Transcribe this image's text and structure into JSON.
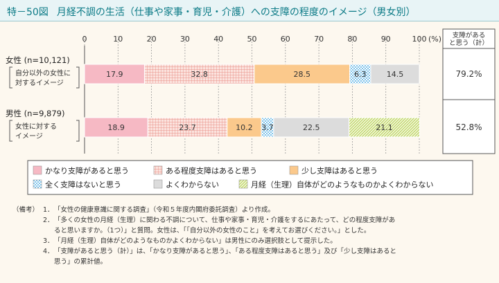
{
  "figure": {
    "number": "特－50図",
    "title": "月経不調の生活（仕事や家事・育児・介護）への支障の程度のイメージ（男女別）"
  },
  "colors": {
    "title": "#0b7a86",
    "cat1": "#f6b9c4",
    "cat2": "#f7cbc2",
    "cat3": "#fbc98c",
    "cat4": "#bfe0f4",
    "cat5": "#dcdcdc",
    "cat6": "#e2edb0"
  },
  "chart_data": {
    "type": "bar",
    "orientation": "horizontal",
    "stacked": true,
    "xlim": [
      0,
      100
    ],
    "x_ticks": [
      "0",
      "10",
      "20",
      "30",
      "40",
      "50",
      "60",
      "70",
      "80",
      "90",
      "100"
    ],
    "x_unit": "(%)",
    "side_header": "支障がある\nと思う（計）",
    "rows": [
      {
        "label": "女性 (n=10,121)",
        "sublabel": [
          "自分以外の女性に",
          "対するイメージ"
        ],
        "values": [
          17.9,
          32.8,
          28.5,
          6.3,
          14.5
        ],
        "side_value": "79.2%"
      },
      {
        "label": "男性 (n=9,879)",
        "sublabel": [
          "女性に対する",
          "イメージ"
        ],
        "values": [
          18.9,
          23.7,
          10.2,
          3.7,
          22.5,
          21.1
        ],
        "side_value": "52.8%"
      }
    ],
    "series": [
      {
        "name": "かなり支障があると思う",
        "pattern": "solid",
        "color": "#f6b9c4"
      },
      {
        "name": "ある程度支障はあると思う",
        "pattern": "grid",
        "color": "#f7cbc2"
      },
      {
        "name": "少し支障はあると思う",
        "pattern": "solid",
        "color": "#fbc98c"
      },
      {
        "name": "全く支障はないと思う",
        "pattern": "checker",
        "color": "#bfe0f4"
      },
      {
        "name": "よくわからない",
        "pattern": "solid",
        "color": "#dcdcdc"
      },
      {
        "name": "月経（生理）自体がどのようなものかよくわからない",
        "pattern": "diagonal",
        "color": "#e2edb0"
      }
    ]
  },
  "notes": {
    "lead": "（備考）",
    "items": [
      {
        "num": "1．",
        "lines": [
          "「女性の健康意識に関する調査」（令和５年度内閣府委託調査）より作成。"
        ]
      },
      {
        "num": "2．",
        "lines": [
          "「多くの女性の月経（生理）に関わる不調について、仕事や家事・育児・介護をするにあたって、どの程度支障があ",
          "ると思いますか。（1つ）」と質問。女性は、「「自分以外の女性のこと」を考えてお選びください。」とした。"
        ]
      },
      {
        "num": "3．",
        "lines": [
          "「月経（生理）自体がどのようなものかよくわからない」は男性にのみ選択肢として提示した。"
        ]
      },
      {
        "num": "4．",
        "lines": [
          "「支障があると思う（計）」は、「かなり支障があると思う」、「ある程度支障はあると思う」及び「少し支障はあると",
          "思う」の累計値。"
        ]
      }
    ]
  }
}
